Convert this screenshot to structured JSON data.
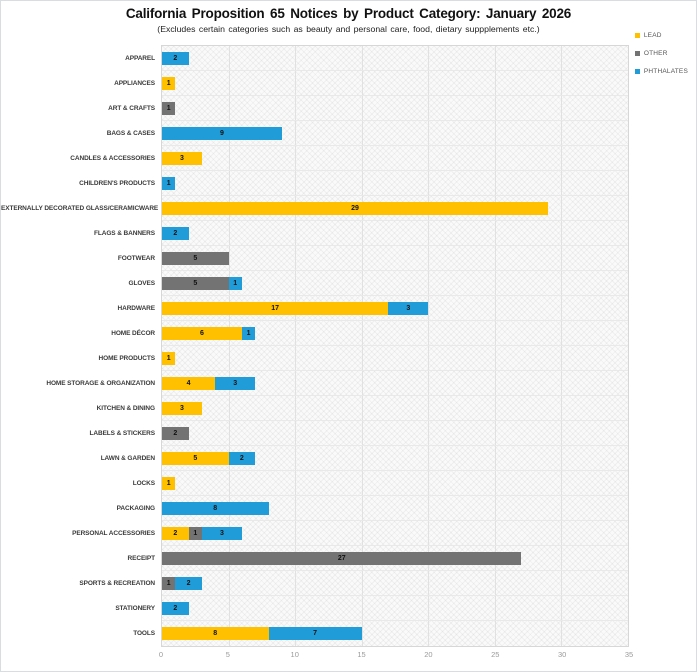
{
  "header": {
    "title": "California Proposition 65 Notices by Product Category: January 2026",
    "subtitle": "(Excludes certain categories such as beauty and personal care, food, dietary suppplements etc.)"
  },
  "legend": [
    {
      "label": "LEAD",
      "color": "#FFC000"
    },
    {
      "label": "OTHER",
      "color": "#737373"
    },
    {
      "label": "PHTHALATES",
      "color": "#209CD8"
    }
  ],
  "colors": {
    "lead": "#FFC000",
    "other": "#737373",
    "phthalates": "#209CD8",
    "gridline": "#e1e1e1",
    "plot_background": "#fafafa"
  },
  "chart_data": {
    "type": "bar",
    "orientation": "horizontal",
    "stacked": true,
    "title": "California Proposition 65 Notices by Product Category: January 2026",
    "subtitle": "(Excludes certain categories such as beauty and personal care, food, dietary suppplements etc.)",
    "categories": [
      "APPAREL",
      "APPLIANCES",
      "ART & CRAFTS",
      "BAGS & CASES",
      "CANDLES & ACCESSORIES",
      "CHILDREN'S PRODUCTS",
      "EXTERNALLY DECORATED GLASS/CERAMICWARE",
      "FLAGS & BANNERS",
      "FOOTWEAR",
      "GLOVES",
      "HARDWARE",
      "HOME DÉCOR",
      "HOME PRODUCTS",
      "HOME STORAGE & ORGANIZATION",
      "KITCHEN & DINING",
      "LABELS & STICKERS",
      "LAWN & GARDEN",
      "LOCKS",
      "PACKAGING",
      "PERSONAL ACCESSORIES",
      "RECEIPT",
      "SPORTS & RECREATION",
      "STATIONERY",
      "TOOLS"
    ],
    "series": [
      {
        "name": "LEAD",
        "color": "#FFC000",
        "values": [
          0,
          1,
          0,
          0,
          3,
          0,
          29,
          0,
          0,
          0,
          17,
          6,
          1,
          4,
          3,
          0,
          5,
          1,
          0,
          2,
          0,
          0,
          0,
          8
        ]
      },
      {
        "name": "OTHER",
        "color": "#737373",
        "values": [
          0,
          0,
          1,
          0,
          0,
          0,
          0,
          0,
          5,
          5,
          0,
          0,
          0,
          0,
          0,
          2,
          0,
          0,
          0,
          1,
          27,
          1,
          0,
          0
        ]
      },
      {
        "name": "PHTHALATES",
        "color": "#209CD8",
        "values": [
          2,
          0,
          0,
          9,
          0,
          1,
          0,
          2,
          0,
          1,
          3,
          1,
          0,
          3,
          0,
          0,
          2,
          0,
          8,
          3,
          0,
          2,
          2,
          7
        ]
      }
    ],
    "xlabel": "",
    "ylabel": "",
    "xlim": [
      0,
      35
    ],
    "x_ticks": [
      0,
      5,
      10,
      15,
      20,
      25,
      30,
      35
    ],
    "grid": true,
    "legend_position": "top-right",
    "bar_labels": "inside"
  }
}
